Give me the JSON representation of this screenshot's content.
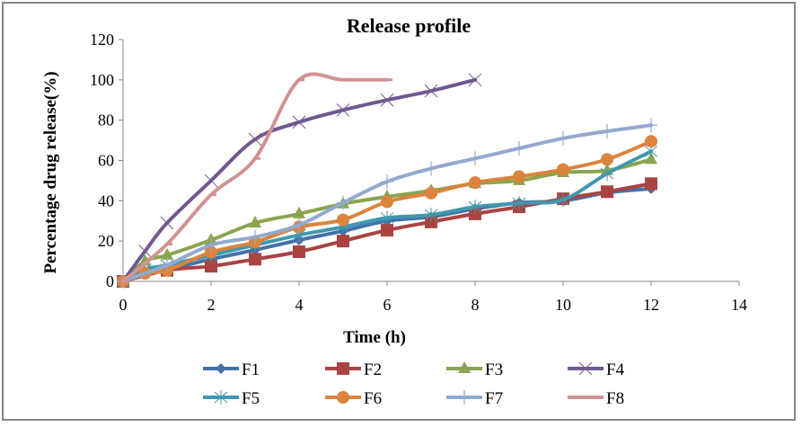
{
  "chart_data": {
    "type": "line",
    "smooth": true,
    "title": "Release profile",
    "xlabel": "Time (h)",
    "ylabel": "Percentage drug release(%)",
    "xlim": [
      0,
      14
    ],
    "ylim": [
      0,
      120
    ],
    "xticks": [
      0,
      2,
      4,
      6,
      8,
      10,
      12,
      14
    ],
    "yticks": [
      0,
      20,
      40,
      60,
      80,
      100,
      120
    ],
    "grid": false,
    "legend_position": "bottom",
    "series": [
      {
        "name": "F1",
        "color": "#4472A8",
        "marker": "diamond",
        "x": [
          0,
          0.5,
          1,
          2,
          3,
          4,
          5,
          6,
          7,
          8,
          9,
          10,
          11,
          12
        ],
        "y": [
          0,
          5,
          6,
          11,
          15.6,
          20.5,
          25,
          30,
          32,
          36,
          39,
          40,
          44,
          46
        ]
      },
      {
        "name": "F2",
        "color": "#A94442",
        "marker": "square",
        "x": [
          0,
          1,
          2,
          3,
          4,
          5,
          6,
          7,
          8,
          9,
          10,
          11,
          12
        ],
        "y": [
          0,
          5.5,
          7.5,
          11,
          14.7,
          20,
          25.4,
          29.5,
          33.5,
          37,
          41,
          44.5,
          48.5
        ]
      },
      {
        "name": "F3",
        "color": "#89A54E",
        "marker": "triangle",
        "x": [
          0,
          0.5,
          1,
          2,
          3,
          4,
          5,
          6,
          7,
          8,
          9,
          10,
          11,
          12
        ],
        "y": [
          0,
          10,
          13,
          20.5,
          29,
          33.5,
          38.5,
          42,
          45,
          48.5,
          50,
          54,
          55,
          60.5
        ]
      },
      {
        "name": "F4",
        "color": "#71588F",
        "marker": "x",
        "x": [
          0,
          0.5,
          1,
          2,
          3,
          4,
          5,
          6,
          7,
          8
        ],
        "y": [
          0,
          15,
          29,
          50,
          70.5,
          79,
          85,
          90,
          94.5,
          100
        ]
      },
      {
        "name": "F5",
        "color": "#4198AF",
        "marker": "star",
        "x": [
          0,
          0.5,
          1,
          2,
          3,
          4,
          5,
          6,
          7,
          8,
          9,
          10,
          11,
          12
        ],
        "y": [
          0,
          6,
          8,
          13,
          18,
          23,
          27,
          31.5,
          33,
          37,
          38.8,
          40.5,
          53.5,
          64.5
        ]
      },
      {
        "name": "F6",
        "color": "#DB843D",
        "marker": "circle",
        "x": [
          0,
          0.5,
          1,
          2,
          3,
          4,
          5,
          6,
          7,
          8,
          9,
          10,
          11,
          12
        ],
        "y": [
          0,
          4,
          5.5,
          14.5,
          19.5,
          27,
          30.5,
          39.5,
          43.8,
          49,
          52,
          55.5,
          60.5,
          69.5
        ]
      },
      {
        "name": "F7",
        "color": "#93A9CF",
        "marker": "plus",
        "x": [
          0,
          1,
          2,
          3,
          4,
          5,
          6,
          7,
          8,
          9,
          10,
          11,
          12
        ],
        "y": [
          0,
          8,
          18,
          22,
          28,
          39,
          49.5,
          56,
          61,
          66,
          71,
          74.5,
          77.5
        ]
      },
      {
        "name": "F8",
        "color": "#D19392",
        "marker": "dash",
        "x": [
          0,
          1,
          2,
          3,
          4,
          5,
          6
        ],
        "y": [
          0,
          18.5,
          43,
          61,
          100,
          100,
          100
        ]
      }
    ]
  }
}
